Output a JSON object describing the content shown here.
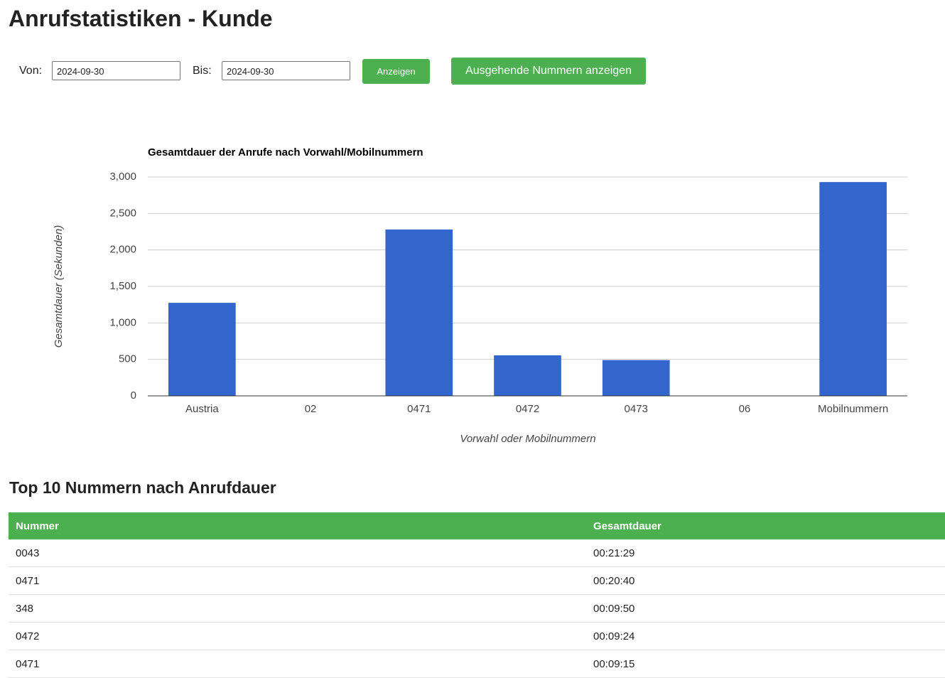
{
  "header": {
    "title": "Anrufstatistiken - Kunde"
  },
  "form": {
    "from_label": "Von:",
    "from_value": "2024-09-30",
    "to_label": "Bis:",
    "to_value": "2024-09-30",
    "submit": "Anzeigen",
    "outgoing": "Ausgehende Nummern anzeigen"
  },
  "chart_data": {
    "type": "bar",
    "title": "Gesamtdauer der Anrufe nach Vorwahl/Mobilnummern",
    "x_label": "Vorwahl oder Mobilnummern",
    "y_label": "Gesamtdauer (Sekunden)",
    "categories": [
      "Austria",
      "02",
      "0471",
      "0472",
      "0473",
      "06",
      "Mobilnummern"
    ],
    "values": [
      1275,
      0,
      2280,
      555,
      490,
      0,
      2930
    ],
    "color": "#3366cc",
    "ylim": [
      0,
      3000
    ],
    "yticks": [
      0,
      500,
      {
        "value": 1000,
        "label": "1,000"
      },
      {
        "value": 1500,
        "label": "1,500"
      },
      {
        "value": 2000,
        "label": "2,000"
      },
      {
        "value": 2500,
        "label": "2,500"
      },
      {
        "value": 3000,
        "label": "3,000"
      }
    ],
    "grid": true
  },
  "table": {
    "title": "Top 10 Nummern nach Anrufdauer",
    "columns": [
      "Nummer",
      "Gesamtdauer"
    ],
    "rows": [
      [
        "0043",
        "00:21:29"
      ],
      [
        "0471",
        "00:20:40"
      ],
      [
        "348",
        "00:09:50"
      ],
      [
        "0472",
        "00:09:24"
      ],
      [
        "0471",
        "00:09:15"
      ]
    ]
  }
}
